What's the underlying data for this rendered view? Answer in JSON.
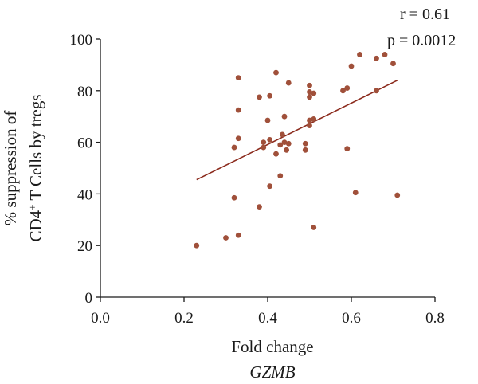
{
  "chart_data": {
    "type": "scatter",
    "xlabel": "Fold change",
    "xlabel_gene": "GZMB",
    "ylabel_line1": "% suppression of",
    "ylabel_line2_prefix": "CD4",
    "ylabel_line2_sup": "+",
    "ylabel_line2_suffix": " T Cells by tregs",
    "stats": {
      "r": "r = 0.61",
      "p": "p = 0.0012"
    },
    "xlim": [
      0.0,
      0.8
    ],
    "ylim": [
      0,
      100
    ],
    "xticks": [
      0.0,
      0.2,
      0.4,
      0.6,
      0.8
    ],
    "xtick_labels": [
      "0.0",
      "0.2",
      "0.4",
      "0.6",
      "0.8"
    ],
    "yticks": [
      0,
      20,
      40,
      60,
      80,
      100
    ],
    "ytick_labels": [
      "0",
      "20",
      "40",
      "60",
      "80",
      "100"
    ],
    "point_color": "#a0503a",
    "line_color": "#8b2a1c",
    "regression": {
      "x": [
        0.23,
        0.71
      ],
      "y": [
        45.5,
        84.0
      ]
    },
    "points": [
      {
        "x": 0.23,
        "y": 20
      },
      {
        "x": 0.3,
        "y": 23
      },
      {
        "x": 0.33,
        "y": 24
      },
      {
        "x": 0.32,
        "y": 38.5
      },
      {
        "x": 0.32,
        "y": 58
      },
      {
        "x": 0.33,
        "y": 61.5
      },
      {
        "x": 0.33,
        "y": 72.5
      },
      {
        "x": 0.33,
        "y": 85
      },
      {
        "x": 0.38,
        "y": 35
      },
      {
        "x": 0.38,
        "y": 77.5
      },
      {
        "x": 0.39,
        "y": 58
      },
      {
        "x": 0.39,
        "y": 60
      },
      {
        "x": 0.4,
        "y": 68.5
      },
      {
        "x": 0.405,
        "y": 43
      },
      {
        "x": 0.405,
        "y": 61
      },
      {
        "x": 0.405,
        "y": 78
      },
      {
        "x": 0.42,
        "y": 87
      },
      {
        "x": 0.42,
        "y": 55.5
      },
      {
        "x": 0.43,
        "y": 47
      },
      {
        "x": 0.43,
        "y": 59
      },
      {
        "x": 0.435,
        "y": 63
      },
      {
        "x": 0.44,
        "y": 60
      },
      {
        "x": 0.44,
        "y": 70
      },
      {
        "x": 0.445,
        "y": 57
      },
      {
        "x": 0.45,
        "y": 59.5
      },
      {
        "x": 0.45,
        "y": 83
      },
      {
        "x": 0.49,
        "y": 57
      },
      {
        "x": 0.49,
        "y": 59.5
      },
      {
        "x": 0.5,
        "y": 66.5
      },
      {
        "x": 0.5,
        "y": 68.5
      },
      {
        "x": 0.5,
        "y": 77.5
      },
      {
        "x": 0.5,
        "y": 79.5
      },
      {
        "x": 0.5,
        "y": 82
      },
      {
        "x": 0.51,
        "y": 69
      },
      {
        "x": 0.51,
        "y": 79
      },
      {
        "x": 0.51,
        "y": 27
      },
      {
        "x": 0.58,
        "y": 80
      },
      {
        "x": 0.59,
        "y": 81
      },
      {
        "x": 0.59,
        "y": 57.5
      },
      {
        "x": 0.6,
        "y": 89.5
      },
      {
        "x": 0.61,
        "y": 40.5
      },
      {
        "x": 0.62,
        "y": 94
      },
      {
        "x": 0.66,
        "y": 80
      },
      {
        "x": 0.66,
        "y": 92.5
      },
      {
        "x": 0.68,
        "y": 94
      },
      {
        "x": 0.7,
        "y": 90.5
      },
      {
        "x": 0.71,
        "y": 39.5
      }
    ]
  }
}
